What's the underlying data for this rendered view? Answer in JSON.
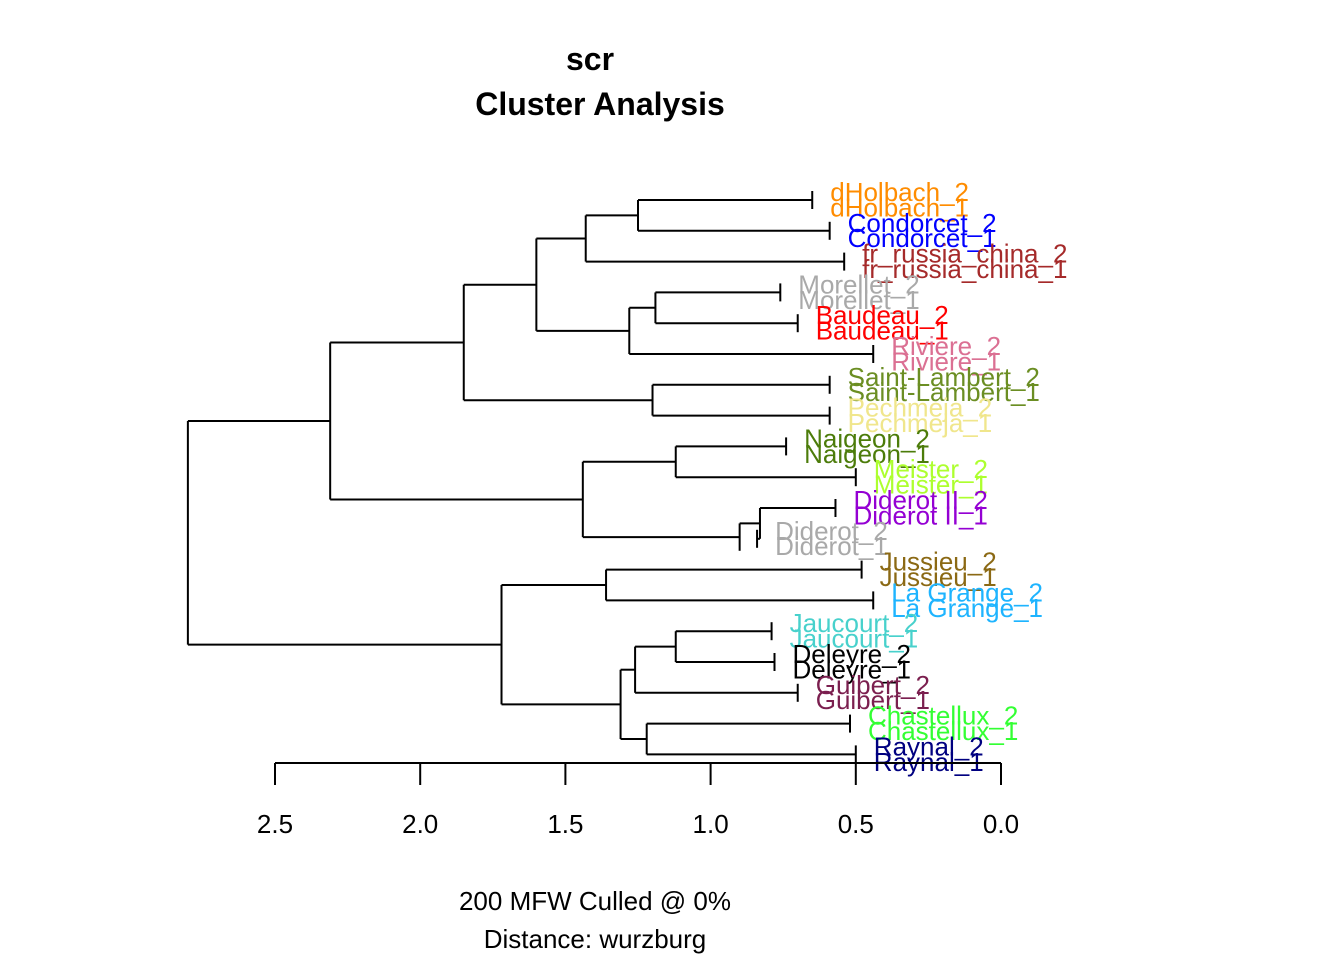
{
  "title": {
    "line1": "scr",
    "line2": "Cluster Analysis"
  },
  "caption": {
    "line1": "200 MFW  Culled @ 0%",
    "line2": "Distance: wurzburg"
  },
  "axis": {
    "ticks": [
      "2.5",
      "2.0",
      "1.5",
      "1.0",
      "0.5",
      "0.0"
    ],
    "tick_values": [
      2.5,
      2.0,
      1.5,
      1.0,
      0.5,
      0.0
    ]
  },
  "leaves": [
    {
      "label": "dHolbach_2",
      "color": "#FF8C00",
      "tip": 0.65
    },
    {
      "label": "dHolbach_1",
      "color": "#FF8C00",
      "tip": 0.65
    },
    {
      "label": "Condorcet_2",
      "color": "#0000FF",
      "tip": 0.59
    },
    {
      "label": "Condorcet_1",
      "color": "#0000FF",
      "tip": 0.59
    },
    {
      "label": "fr_russia_china_2",
      "color": "#A52A2A",
      "tip": 0.54
    },
    {
      "label": "fr_russia_china_1",
      "color": "#A52A2A",
      "tip": 0.54
    },
    {
      "label": "Morellet_2",
      "color": "#A9A9A9",
      "tip": 0.76
    },
    {
      "label": "Morellet_1",
      "color": "#A9A9A9",
      "tip": 0.76
    },
    {
      "label": "Baudeau_2",
      "color": "#FF0000",
      "tip": 0.7
    },
    {
      "label": "Baudeau_1",
      "color": "#FF0000",
      "tip": 0.7
    },
    {
      "label": "Riviere_2",
      "color": "#DB7093",
      "tip": 0.44
    },
    {
      "label": "Riviere_1",
      "color": "#DB7093",
      "tip": 0.44
    },
    {
      "label": "Saint-Lambert_2",
      "color": "#6B8E23",
      "tip": 0.59
    },
    {
      "label": "Saint-Lambert_1",
      "color": "#6B8E23",
      "tip": 0.59
    },
    {
      "label": "Pechmeja_2",
      "color": "#F0E68C",
      "tip": 0.59
    },
    {
      "label": "Pechmeja_1",
      "color": "#F0E68C",
      "tip": 0.59
    },
    {
      "label": "Naigeon_2",
      "color": "#4C7C0A",
      "tip": 0.74
    },
    {
      "label": "Naigeon_1",
      "color": "#4C7C0A",
      "tip": 0.74
    },
    {
      "label": "Meister_2",
      "color": "#ADFF2F",
      "tip": 0.5
    },
    {
      "label": "Meister_1",
      "color": "#ADFF2F",
      "tip": 0.5
    },
    {
      "label": "Diderot II_2",
      "color": "#9400D3",
      "tip": 0.57
    },
    {
      "label": "Diderot II_1",
      "color": "#9400D3",
      "tip": 0.57
    },
    {
      "label": "Diderot_2",
      "color": "#A9A9A9",
      "tip": 0.84
    },
    {
      "label": "Diderot_1",
      "color": "#A9A9A9",
      "tip": 0.84
    },
    {
      "label": "Jussieu_2",
      "color": "#8B6914",
      "tip": 0.48
    },
    {
      "label": "Jussieu_1",
      "color": "#8B6914",
      "tip": 0.48
    },
    {
      "label": "La Grange_2",
      "color": "#1EB4FF",
      "tip": 0.44
    },
    {
      "label": "La Grange_1",
      "color": "#1EB4FF",
      "tip": 0.44
    },
    {
      "label": "Jaucourt_2",
      "color": "#48D1CC",
      "tip": 0.79
    },
    {
      "label": "Jaucourt_1",
      "color": "#48D1CC",
      "tip": 0.79
    },
    {
      "label": "Deleyre_2",
      "color": "#000000",
      "tip": 0.78
    },
    {
      "label": "Deleyre_1",
      "color": "#000000",
      "tip": 0.78
    },
    {
      "label": "Guibert_2",
      "color": "#7B1F4F",
      "tip": 0.7
    },
    {
      "label": "Guibert_1",
      "color": "#7B1F4F",
      "tip": 0.7
    },
    {
      "label": "Chastellux_2",
      "color": "#33FF33",
      "tip": 0.52
    },
    {
      "label": "Chastellux_1",
      "color": "#33FF33",
      "tip": 0.52
    },
    {
      "label": "Raynal_2",
      "color": "#000080",
      "tip": 0.5
    },
    {
      "label": "Raynal_1",
      "color": "#000080",
      "tip": 0.5
    }
  ],
  "tips": [
    {
      "pair": 0,
      "h": 0.65
    },
    {
      "pair": 1,
      "h": 0.59
    },
    {
      "pair": 2,
      "h": 0.54
    },
    {
      "pair": 3,
      "h": 0.76
    },
    {
      "pair": 4,
      "h": 0.7
    },
    {
      "pair": 5,
      "h": 0.44
    },
    {
      "pair": 6,
      "h": 0.59
    },
    {
      "pair": 7,
      "h": 0.59
    },
    {
      "pair": 8,
      "h": 0.74
    },
    {
      "pair": 9,
      "h": 0.5
    },
    {
      "pair": 10,
      "h": 0.57
    },
    {
      "pair": 11,
      "h": 0.84
    },
    {
      "pair": 12,
      "h": 0.48
    },
    {
      "pair": 13,
      "h": 0.44
    },
    {
      "pair": 14,
      "h": 0.79
    },
    {
      "pair": 15,
      "h": 0.78
    },
    {
      "pair": 16,
      "h": 0.7
    },
    {
      "pair": 17,
      "h": 0.52
    },
    {
      "pair": 18,
      "h": 0.5
    }
  ],
  "merges": [
    {
      "h": 1.25,
      "children": [
        "t0",
        "t1"
      ],
      "id": "n1"
    },
    {
      "h": 1.43,
      "children": [
        "n1",
        "t2"
      ],
      "id": "n2"
    },
    {
      "h": 1.19,
      "children": [
        "t3",
        "t4"
      ],
      "id": "n3"
    },
    {
      "h": 1.28,
      "children": [
        "n3",
        "t5"
      ],
      "id": "n4"
    },
    {
      "h": 1.6,
      "children": [
        "n2",
        "n4"
      ],
      "id": "n5"
    },
    {
      "h": 1.2,
      "children": [
        "t6",
        "t7"
      ],
      "id": "n6"
    },
    {
      "h": 1.85,
      "children": [
        "n5",
        "n6"
      ],
      "id": "n7"
    },
    {
      "h": 1.12,
      "children": [
        "t8",
        "t9"
      ],
      "id": "n8"
    },
    {
      "h": 0.83,
      "children": [
        "t10",
        "t11"
      ],
      "id": "n9"
    },
    {
      "h": 0.9,
      "children": [
        "n9",
        "t11b"
      ],
      "id": "n9b"
    },
    {
      "h": 1.44,
      "children": [
        "n8",
        "n9b"
      ],
      "id": "n10"
    },
    {
      "h": 2.31,
      "children": [
        "n7",
        "n10"
      ],
      "id": "n11"
    },
    {
      "h": 1.36,
      "children": [
        "t12",
        "t13"
      ],
      "id": "n12"
    },
    {
      "h": 1.12,
      "children": [
        "t14",
        "t15"
      ],
      "id": "n13"
    },
    {
      "h": 1.26,
      "children": [
        "n13",
        "t16"
      ],
      "id": "n14"
    },
    {
      "h": 1.22,
      "children": [
        "t17",
        "t18"
      ],
      "id": "n15"
    },
    {
      "h": 1.31,
      "children": [
        "n14",
        "n15"
      ],
      "id": "n16"
    },
    {
      "h": 1.72,
      "children": [
        "n12",
        "n16"
      ],
      "id": "n17"
    },
    {
      "h": 2.8,
      "children": [
        "n11",
        "n17"
      ],
      "id": "root"
    }
  ]
}
